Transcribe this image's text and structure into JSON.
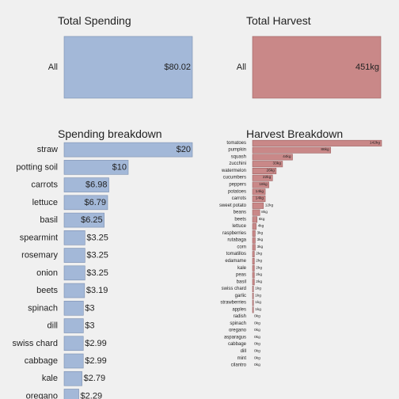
{
  "colors": {
    "background": "#f0f0f0",
    "spending_fill": "#a3b8d8",
    "spending_stroke": "#7b8fb0",
    "harvest_fill": "#c98888",
    "harvest_stroke": "#9d6262"
  },
  "chart_data": [
    {
      "type": "bar",
      "orientation": "horizontal",
      "title": "Total Spending",
      "categories": [
        "All"
      ],
      "values": [
        80.02
      ],
      "labels": [
        "$80.02"
      ],
      "xlim": [
        0,
        80.02
      ]
    },
    {
      "type": "bar",
      "orientation": "horizontal",
      "title": "Total Harvest",
      "categories": [
        "All"
      ],
      "values": [
        451
      ],
      "labels": [
        "451kg"
      ],
      "xlim": [
        0,
        451
      ]
    },
    {
      "type": "bar",
      "orientation": "horizontal",
      "title": "Spending breakdown",
      "categories": [
        "straw",
        "potting soil",
        "carrots",
        "lettuce",
        "basil",
        "spearmint",
        "rosemary",
        "onion",
        "beets",
        "spinach",
        "dill",
        "swiss chard",
        "cabbage",
        "kale",
        "oregano"
      ],
      "values": [
        20,
        10,
        6.98,
        6.79,
        6.25,
        3.25,
        3.25,
        3.25,
        3.19,
        3,
        3,
        2.99,
        2.99,
        2.79,
        2.29
      ],
      "labels": [
        "$20",
        "$10",
        "$6.98",
        "$6.79",
        "$6.25",
        "$3.25",
        "$3.25",
        "$3.25",
        "$3.19",
        "$3",
        "$3",
        "$2.99",
        "$2.99",
        "$2.79",
        "$2.29"
      ],
      "xlim": [
        0,
        20
      ]
    },
    {
      "type": "bar",
      "orientation": "horizontal",
      "title": "Harvest Breakdown",
      "categories": [
        "tomatoes",
        "pumpkin",
        "squash",
        "zucchini",
        "watermelon",
        "cucumbers",
        "peppers",
        "potatoes",
        "carrots",
        "sweet potato",
        "beans",
        "beets",
        "lettuce",
        "raspberries",
        "rutabaga",
        "corn",
        "tomatillos",
        "edamame",
        "kale",
        "peas",
        "basil",
        "swiss chard",
        "garlic",
        "strawberries",
        "apples",
        "radish",
        "spinach",
        "oregano",
        "asparagus",
        "cabbage",
        "dill",
        "mint",
        "cilantro"
      ],
      "values": [
        142,
        86,
        44,
        33,
        26,
        22,
        18,
        14,
        14,
        12,
        8,
        5,
        4,
        3,
        3,
        3,
        2,
        2,
        2,
        2,
        2,
        1,
        1,
        1,
        1,
        0,
        0,
        0,
        0,
        0,
        0,
        0,
        0
      ],
      "labels": [
        "142kg",
        "86kg",
        "44kg",
        "33kg",
        "26kg",
        "22kg",
        "18kg",
        "14kg",
        "14kg",
        "12kg",
        "8kg",
        "5kg",
        "4kg",
        "3kg",
        "3kg",
        "3kg",
        "2kg",
        "2kg",
        "2kg",
        "2kg",
        "2kg",
        "1kg",
        "1kg",
        "1kg",
        "1kg",
        "0kg",
        "0kg",
        "0kg",
        "0kg",
        "0kg",
        "0kg",
        "0kg",
        "0kg"
      ],
      "xlim": [
        0,
        142
      ]
    }
  ]
}
